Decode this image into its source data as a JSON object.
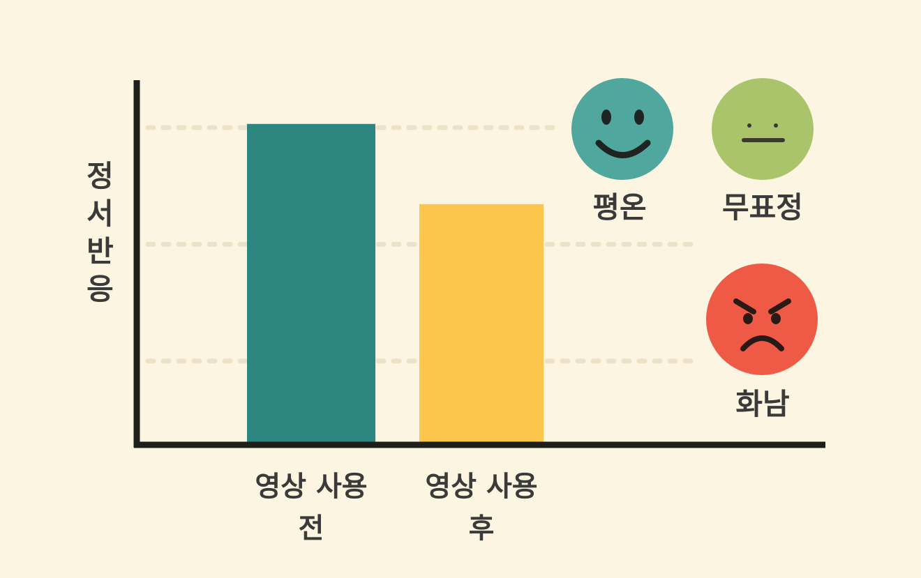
{
  "chart_data": {
    "type": "bar",
    "y_label": "정서반응",
    "categories": [
      "영상 사용 전",
      "영상 사용 후"
    ],
    "values": [
      88,
      66
    ],
    "colors": [
      "#2e8680",
      "#fbc64b"
    ],
    "ylim": [
      0,
      100
    ],
    "gridlines": [
      23,
      55,
      87
    ],
    "annotations": [
      "평온",
      "무표정",
      "화남"
    ]
  }
}
